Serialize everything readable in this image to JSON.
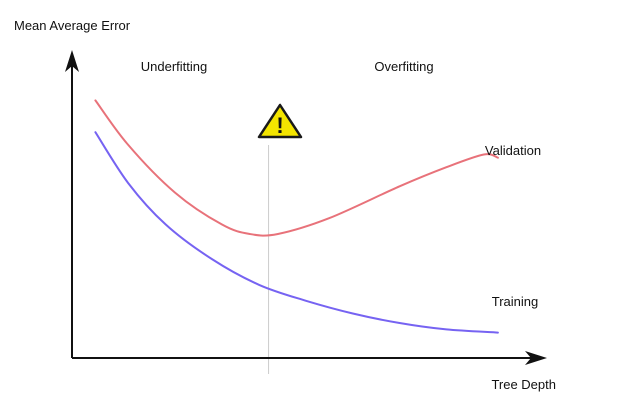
{
  "chart_data": {
    "type": "line",
    "title": "",
    "xlabel": "Tree Depth",
    "ylabel": "Mean Average Error",
    "grid": false,
    "legend": "none",
    "annotations": {
      "left_region": "Underfitting",
      "right_region": "Overfitting",
      "warning_symbol": "!",
      "warning_icon": "warning-triangle-icon"
    },
    "series": [
      {
        "name": "Validation",
        "color": "#e8727a",
        "points": [
          [
            0.05,
            0.81
          ],
          [
            0.12,
            0.67
          ],
          [
            0.22,
            0.52
          ],
          [
            0.32,
            0.42
          ],
          [
            0.38,
            0.39
          ],
          [
            0.44,
            0.39
          ],
          [
            0.55,
            0.44
          ],
          [
            0.7,
            0.54
          ],
          [
            0.8,
            0.6
          ],
          [
            0.88,
            0.64
          ],
          [
            0.91,
            0.63
          ]
        ]
      },
      {
        "name": "Training",
        "color": "#7663f2",
        "points": [
          [
            0.05,
            0.71
          ],
          [
            0.12,
            0.55
          ],
          [
            0.2,
            0.42
          ],
          [
            0.3,
            0.31
          ],
          [
            0.4,
            0.23
          ],
          [
            0.5,
            0.18
          ],
          [
            0.6,
            0.14
          ],
          [
            0.7,
            0.11
          ],
          [
            0.8,
            0.09
          ],
          [
            0.91,
            0.08
          ]
        ]
      }
    ],
    "marker_x": 0.42
  }
}
